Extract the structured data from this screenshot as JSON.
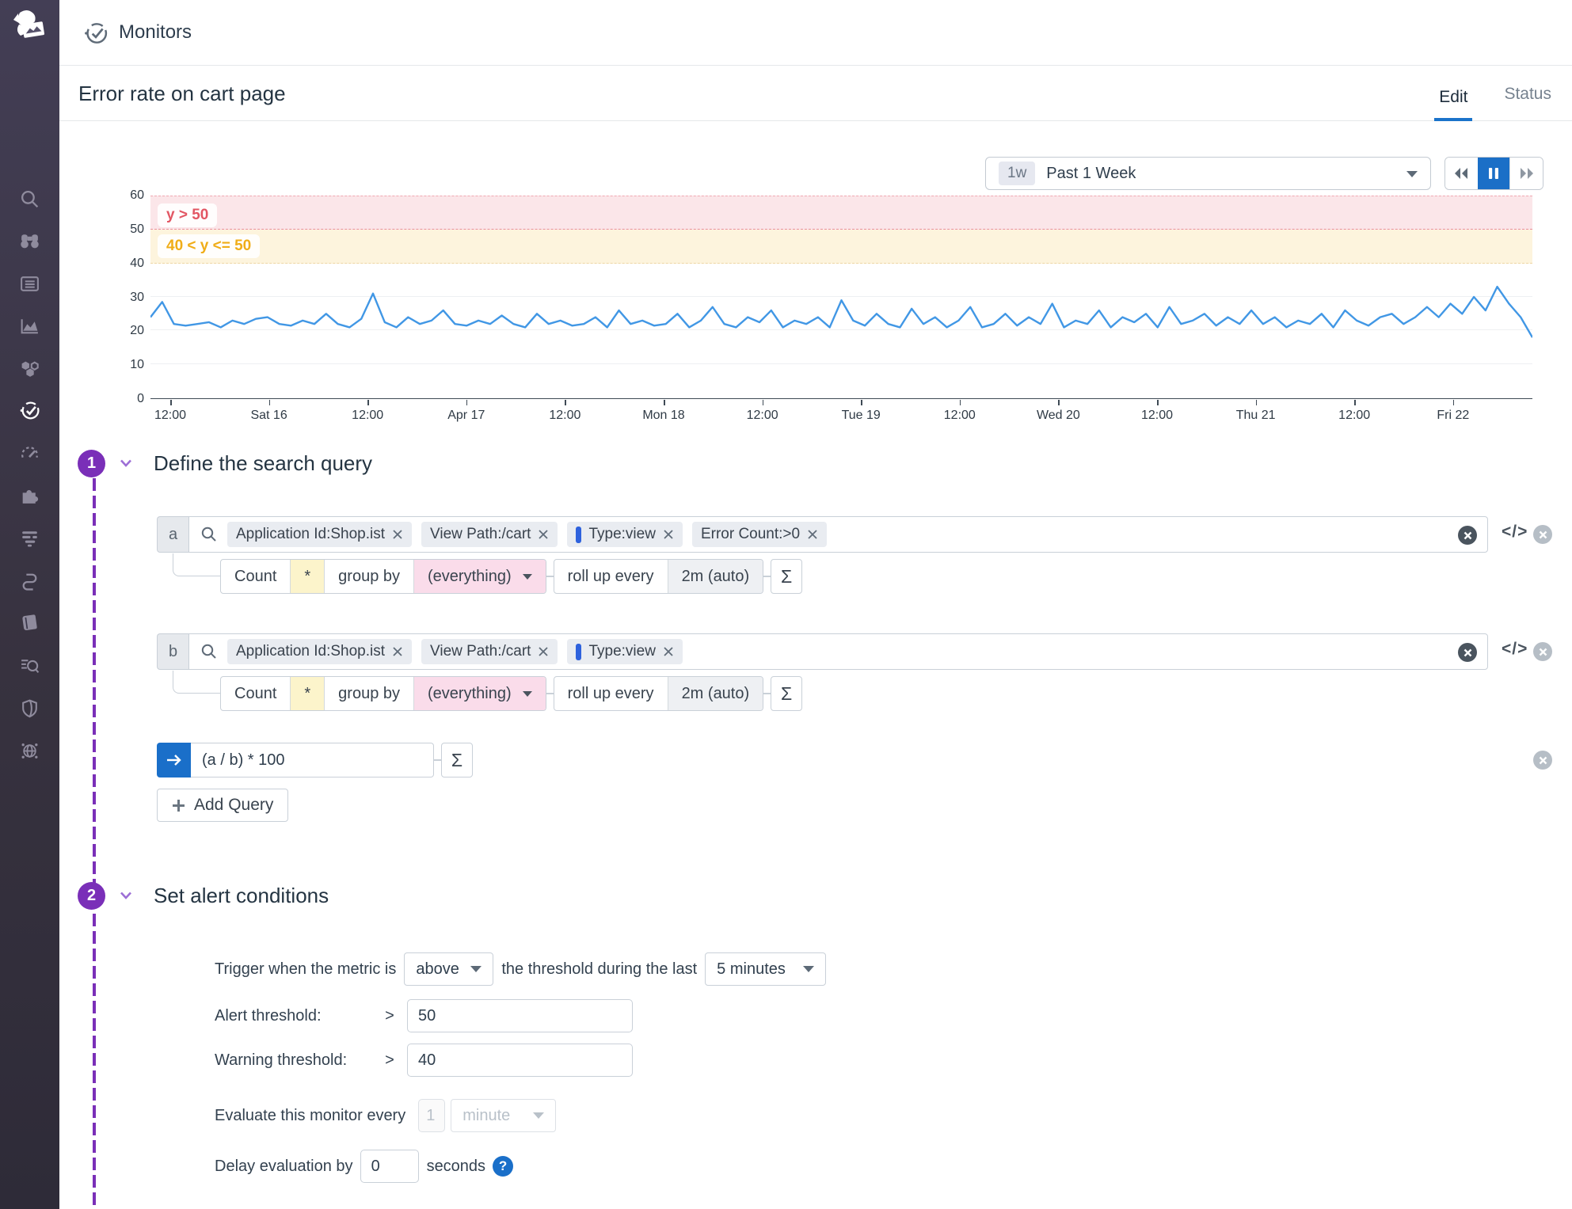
{
  "sidebar": {
    "items": [
      {
        "name": "search"
      },
      {
        "name": "watchdog"
      },
      {
        "name": "events"
      },
      {
        "name": "dashboards"
      },
      {
        "name": "infrastructure"
      },
      {
        "name": "monitors",
        "active": true
      },
      {
        "name": "metrics"
      },
      {
        "name": "integrations"
      },
      {
        "name": "apm"
      },
      {
        "name": "service-map"
      },
      {
        "name": "notebooks"
      },
      {
        "name": "log-explorer"
      },
      {
        "name": "security"
      },
      {
        "name": "network"
      }
    ]
  },
  "header": {
    "title": "Monitors"
  },
  "page": {
    "title": "Error rate on cart page",
    "tab_edit": "Edit",
    "tab_status": "Status"
  },
  "timebar": {
    "badge": "1w",
    "label": "Past 1 Week"
  },
  "chart_data": {
    "type": "line",
    "title": "",
    "xlabel": "",
    "ylabel": "",
    "ylim": [
      0,
      60
    ],
    "yticks": [
      0,
      10,
      20,
      30,
      40,
      50,
      60
    ],
    "xticks": [
      "12:00",
      "Sat 16",
      "12:00",
      "Apr 17",
      "12:00",
      "Mon 18",
      "12:00",
      "Tue 19",
      "12:00",
      "Wed 20",
      "12:00",
      "Thu 21",
      "12:00",
      "Fri 22"
    ],
    "line_color": "#4197e5",
    "grid": "horizontal-faint",
    "legend": "none",
    "alert_zone": {
      "label": "y > 50",
      "from": 50,
      "to": 60,
      "color": "#e25663"
    },
    "warning_zone": {
      "label": "40 < y <= 50",
      "from": 40,
      "to": 50,
      "color": "#f0ad18"
    },
    "layout": {
      "xtick_start": 25,
      "xtick_step": 124.6
    },
    "values": [
      24,
      28.5,
      22,
      21.5,
      22,
      22.5,
      21,
      23,
      22,
      23.5,
      24,
      22,
      21.5,
      23,
      22,
      25,
      22,
      21,
      23.5,
      31,
      22.5,
      21,
      24,
      22,
      23,
      26,
      22,
      21.5,
      23,
      22,
      24.5,
      22,
      21,
      25,
      22,
      23,
      21.5,
      22,
      24,
      21,
      26,
      22,
      23,
      21.5,
      22,
      25,
      21,
      23,
      27,
      22,
      21,
      24,
      22.5,
      26,
      21,
      23,
      22,
      24,
      21,
      29,
      23,
      21.5,
      25,
      22,
      21,
      26.5,
      22,
      24,
      21,
      23,
      27,
      21,
      22,
      25,
      21.5,
      24,
      22,
      28,
      21,
      23,
      22,
      26,
      21,
      24,
      22.5,
      25,
      21,
      27,
      22,
      23,
      25,
      21.5,
      24,
      22,
      26,
      22,
      24,
      21,
      23,
      22,
      25,
      21,
      26,
      23,
      21.5,
      24,
      25,
      22,
      24,
      27,
      24,
      28,
      25,
      30,
      26,
      33,
      28,
      24,
      18
    ]
  },
  "section1": {
    "number": "1",
    "title": "Define the search query"
  },
  "section2": {
    "number": "2",
    "title": "Set alert conditions"
  },
  "queries": [
    {
      "letter": "a",
      "tags": [
        {
          "label": "Application Id:Shop.ist"
        },
        {
          "label": "View Path:/cart"
        },
        {
          "label": "Type:view",
          "facet": true
        },
        {
          "label": "Error Count:>0"
        }
      ]
    },
    {
      "letter": "b",
      "tags": [
        {
          "label": "Application Id:Shop.ist"
        },
        {
          "label": "View Path:/cart"
        },
        {
          "label": "Type:view",
          "facet": true
        }
      ]
    }
  ],
  "aggregation": {
    "method": "Count",
    "star": "*",
    "group_by_label": "group by",
    "group_by_value": "(everything)",
    "rollup_label": "roll up every",
    "rollup_value": "2m (auto)",
    "sigma": "Σ"
  },
  "formula": {
    "expression": "(a / b) * 100",
    "sigma": "Σ"
  },
  "buttons": {
    "add_query": "Add Query",
    "code_icon": "</>"
  },
  "conditions": {
    "trigger_prefix": "Trigger when the metric is",
    "trigger_operator": "above",
    "trigger_middle": "the threshold during the last",
    "trigger_window": "5 minutes",
    "alert_label": "Alert threshold:",
    "alert_op": ">",
    "alert_value": "50",
    "warning_label": "Warning threshold:",
    "warning_op": ">",
    "warning_value": "40",
    "evaluate_label": "Evaluate this monitor every",
    "evaluate_value": "1",
    "evaluate_unit": "minute",
    "delay_label": "Delay evaluation by",
    "delay_value": "0",
    "delay_suffix": "seconds",
    "help_icon": "?"
  }
}
